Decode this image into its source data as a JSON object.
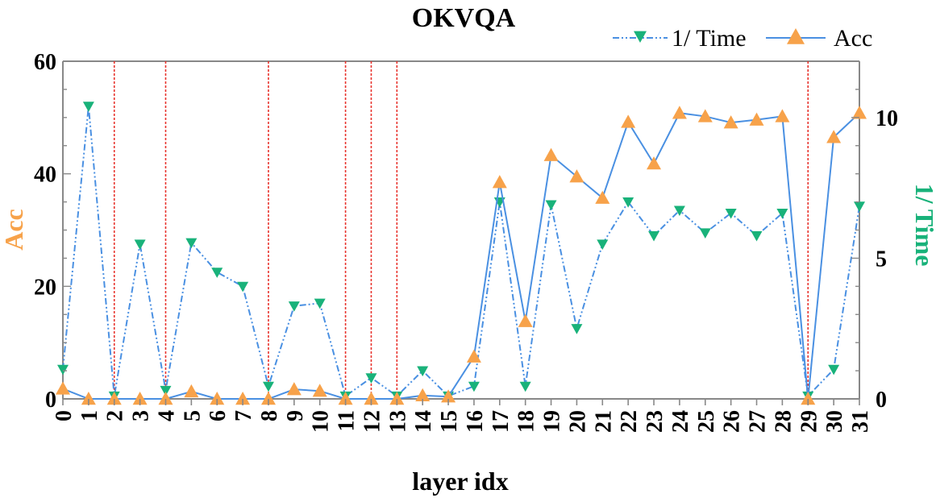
{
  "chart_data": {
    "type": "line",
    "title": "OKVQA",
    "xlabel": "layer idx",
    "ylabel_left": "Acc",
    "ylabel_right": "1/ Time",
    "x": [
      0,
      1,
      2,
      3,
      4,
      5,
      6,
      7,
      8,
      9,
      10,
      11,
      12,
      13,
      14,
      15,
      16,
      17,
      18,
      19,
      20,
      21,
      22,
      23,
      24,
      25,
      26,
      27,
      28,
      29,
      30,
      31
    ],
    "ylim_left": [
      0,
      60
    ],
    "yticks_left": [
      0,
      20,
      40,
      60
    ],
    "ylim_right": [
      0,
      12
    ],
    "yticks_right": [
      0,
      5,
      10
    ],
    "series": [
      {
        "name": "1/ Time",
        "axis": "right",
        "color": "#4a90e2",
        "marker_color": "#19b27a",
        "line_style": "dash-dot-dot",
        "marker": "triangle-down",
        "values": [
          1.05,
          10.4,
          0.1,
          5.5,
          0.3,
          5.55,
          4.5,
          4.0,
          0.45,
          3.3,
          3.4,
          0.1,
          0.75,
          0.1,
          1.0,
          0.1,
          0.45,
          7.0,
          0.45,
          6.9,
          2.5,
          5.5,
          7.0,
          5.8,
          6.7,
          5.9,
          6.6,
          5.8,
          6.6,
          0.1,
          1.05,
          6.85
        ]
      },
      {
        "name": "Acc",
        "axis": "left",
        "color": "#4a90e2",
        "marker_color": "#f7a24a",
        "line_style": "solid",
        "marker": "triangle-up",
        "values": [
          1.8,
          0.0,
          0.0,
          0.0,
          0.0,
          1.3,
          0.0,
          0.0,
          0.0,
          1.7,
          1.4,
          0.0,
          0.0,
          0.0,
          0.6,
          0.4,
          7.5,
          38.5,
          13.8,
          43.3,
          39.5,
          35.7,
          49.2,
          41.8,
          50.8,
          50.2,
          49.1,
          49.6,
          50.2,
          0.0,
          46.5,
          50.8
        ]
      }
    ],
    "vertical_markers": [
      2,
      4,
      8,
      11,
      12,
      13,
      29
    ],
    "vertical_marker_color": "#e8352f",
    "legend_position": "top-right",
    "left_axis_color": "#f7a24a",
    "right_axis_color": "#19b27a"
  }
}
